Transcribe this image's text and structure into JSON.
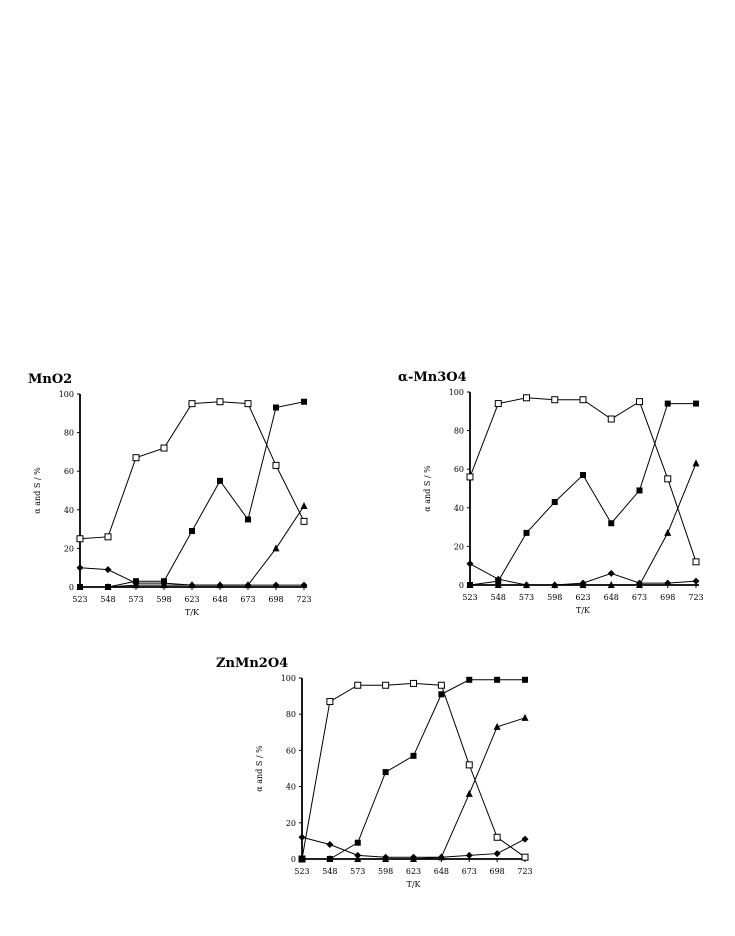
{
  "chart_data": [
    {
      "type": "line",
      "title": "MnO2",
      "xlabel": "T/K",
      "ylabel": "α and S / %",
      "categories": [
        "523",
        "548",
        "573",
        "598",
        "623",
        "648",
        "673",
        "698",
        "723"
      ],
      "ylim": [
        0,
        100
      ],
      "yticks": [
        "0",
        "20",
        "40",
        "60",
        "80",
        "100"
      ],
      "series": [
        {
          "marker": "open-square",
          "values": [
            25,
            26,
            67,
            72,
            95,
            96,
            95,
            63,
            34
          ]
        },
        {
          "marker": "filled-square",
          "values": [
            0,
            0,
            3,
            3,
            29,
            55,
            35,
            93,
            96
          ]
        },
        {
          "marker": "triangle",
          "values": [
            0,
            0,
            1,
            1,
            1,
            1,
            1,
            20,
            42
          ]
        },
        {
          "marker": "diamond",
          "values": [
            10,
            9,
            2,
            2,
            1,
            1,
            1,
            1,
            1
          ]
        }
      ]
    },
    {
      "type": "line",
      "title": "α-Mn3O4",
      "xlabel": "T/K",
      "ylabel": "α and S / %",
      "categories": [
        "523",
        "548",
        "573",
        "598",
        "623",
        "648",
        "673",
        "698",
        "723"
      ],
      "ylim": [
        0,
        100
      ],
      "yticks": [
        "0",
        "20",
        "40",
        "60",
        "80",
        "100"
      ],
      "series": [
        {
          "marker": "open-square",
          "values": [
            56,
            94,
            97,
            96,
            96,
            86,
            95,
            55,
            12
          ]
        },
        {
          "marker": "filled-square",
          "values": [
            0,
            2,
            27,
            43,
            57,
            32,
            49,
            94,
            94
          ]
        },
        {
          "marker": "triangle",
          "values": [
            0,
            0,
            0,
            0,
            0,
            0,
            0,
            27,
            63
          ]
        },
        {
          "marker": "diamond",
          "values": [
            11,
            3,
            0,
            0,
            1,
            6,
            1,
            1,
            2
          ]
        }
      ]
    },
    {
      "type": "line",
      "title": "ZnMn2O4",
      "xlabel": "T/K",
      "ylabel": "α and S / %",
      "categories": [
        "523",
        "548",
        "573",
        "598",
        "623",
        "648",
        "673",
        "698",
        "723"
      ],
      "ylim": [
        0,
        100
      ],
      "yticks": [
        "0",
        "20",
        "40",
        "60",
        "80",
        "100"
      ],
      "series": [
        {
          "marker": "open-square",
          "values": [
            0,
            87,
            96,
            96,
            97,
            96,
            52,
            12,
            1
          ]
        },
        {
          "marker": "filled-square",
          "values": [
            0,
            0,
            9,
            48,
            57,
            91,
            99,
            99,
            99
          ]
        },
        {
          "marker": "triangle",
          "values": [
            0,
            0,
            0,
            0,
            0,
            1,
            36,
            73,
            78
          ]
        },
        {
          "marker": "diamond",
          "values": [
            12,
            8,
            2,
            1,
            1,
            1,
            2,
            3,
            11
          ]
        }
      ]
    }
  ]
}
